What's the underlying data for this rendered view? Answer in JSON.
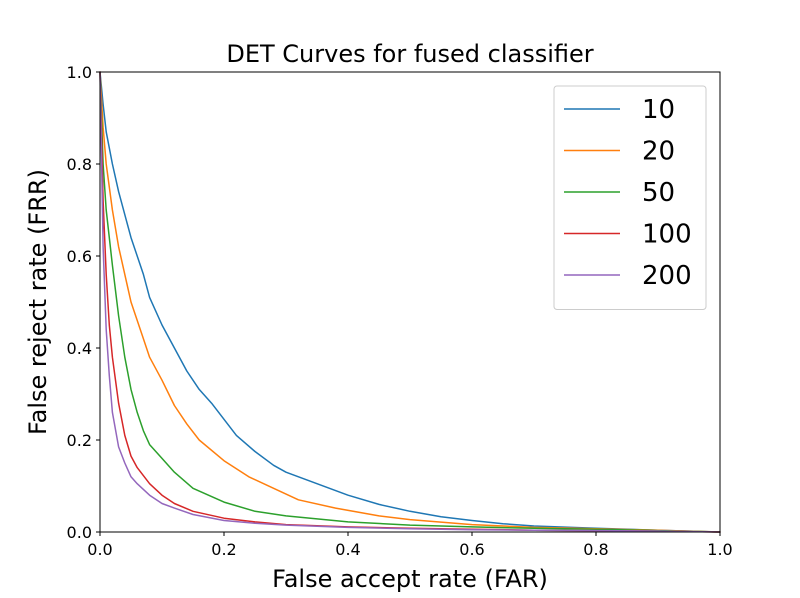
{
  "chart_data": {
    "type": "line",
    "title": "DET Curves for fused classifier",
    "xlabel": "False accept rate (FAR)",
    "ylabel": "False reject rate (FRR)",
    "xlim": [
      0.0,
      1.0
    ],
    "ylim": [
      0.0,
      1.0
    ],
    "xticks": [
      "0.0",
      "0.2",
      "0.4",
      "0.6",
      "0.8",
      "1.0"
    ],
    "yticks": [
      "0.0",
      "0.2",
      "0.4",
      "0.6",
      "0.8",
      "1.0"
    ],
    "grid": false,
    "legend_position": "top-right",
    "series": [
      {
        "name": "10",
        "color": "#1f77b4",
        "x": [
          0,
          0.005,
          0.01,
          0.02,
          0.03,
          0.05,
          0.07,
          0.08,
          0.1,
          0.12,
          0.14,
          0.16,
          0.18,
          0.2,
          0.22,
          0.25,
          0.28,
          0.3,
          0.35,
          0.4,
          0.45,
          0.5,
          0.55,
          0.6,
          0.65,
          0.7,
          0.8,
          0.9,
          1.0
        ],
        "y": [
          1.0,
          0.93,
          0.87,
          0.8,
          0.74,
          0.64,
          0.56,
          0.51,
          0.45,
          0.4,
          0.35,
          0.31,
          0.28,
          0.245,
          0.21,
          0.175,
          0.145,
          0.13,
          0.105,
          0.08,
          0.06,
          0.045,
          0.033,
          0.025,
          0.018,
          0.013,
          0.008,
          0.004,
          0.0
        ]
      },
      {
        "name": "20",
        "color": "#ff7f0e",
        "x": [
          0,
          0.005,
          0.01,
          0.02,
          0.03,
          0.05,
          0.07,
          0.08,
          0.1,
          0.12,
          0.14,
          0.16,
          0.2,
          0.24,
          0.28,
          0.32,
          0.38,
          0.45,
          0.5,
          0.6,
          0.7,
          0.8,
          0.9,
          1.0
        ],
        "y": [
          1.0,
          0.88,
          0.8,
          0.7,
          0.62,
          0.5,
          0.42,
          0.38,
          0.33,
          0.275,
          0.235,
          0.2,
          0.155,
          0.12,
          0.095,
          0.07,
          0.052,
          0.035,
          0.027,
          0.016,
          0.01,
          0.007,
          0.004,
          0.0
        ]
      },
      {
        "name": "50",
        "color": "#2ca02c",
        "x": [
          0,
          0.005,
          0.01,
          0.02,
          0.03,
          0.04,
          0.05,
          0.06,
          0.07,
          0.08,
          0.1,
          0.12,
          0.15,
          0.2,
          0.25,
          0.3,
          0.4,
          0.5,
          0.6,
          0.7,
          0.8,
          0.9,
          1.0
        ],
        "y": [
          1.0,
          0.8,
          0.7,
          0.58,
          0.47,
          0.38,
          0.31,
          0.26,
          0.22,
          0.19,
          0.16,
          0.13,
          0.095,
          0.065,
          0.045,
          0.035,
          0.022,
          0.015,
          0.011,
          0.008,
          0.006,
          0.003,
          0.0
        ]
      },
      {
        "name": "100",
        "color": "#d62728",
        "x": [
          0,
          0.005,
          0.01,
          0.015,
          0.02,
          0.03,
          0.04,
          0.05,
          0.06,
          0.08,
          0.1,
          0.12,
          0.15,
          0.2,
          0.25,
          0.3,
          0.4,
          0.5,
          0.6,
          0.7,
          0.8,
          0.9,
          1.0
        ],
        "y": [
          1.0,
          0.72,
          0.56,
          0.45,
          0.38,
          0.28,
          0.21,
          0.165,
          0.14,
          0.105,
          0.08,
          0.062,
          0.045,
          0.03,
          0.022,
          0.016,
          0.011,
          0.008,
          0.006,
          0.004,
          0.003,
          0.002,
          0.0
        ]
      },
      {
        "name": "200",
        "color": "#9467bd",
        "x": [
          0,
          0.005,
          0.01,
          0.015,
          0.02,
          0.03,
          0.04,
          0.05,
          0.06,
          0.08,
          0.1,
          0.12,
          0.15,
          0.2,
          0.25,
          0.3,
          0.4,
          0.5,
          0.6,
          0.7,
          0.8,
          0.9,
          1.0
        ],
        "y": [
          1.0,
          0.62,
          0.44,
          0.34,
          0.26,
          0.185,
          0.15,
          0.12,
          0.105,
          0.08,
          0.062,
          0.052,
          0.038,
          0.025,
          0.019,
          0.015,
          0.01,
          0.007,
          0.005,
          0.004,
          0.003,
          0.002,
          0.0
        ]
      }
    ]
  }
}
